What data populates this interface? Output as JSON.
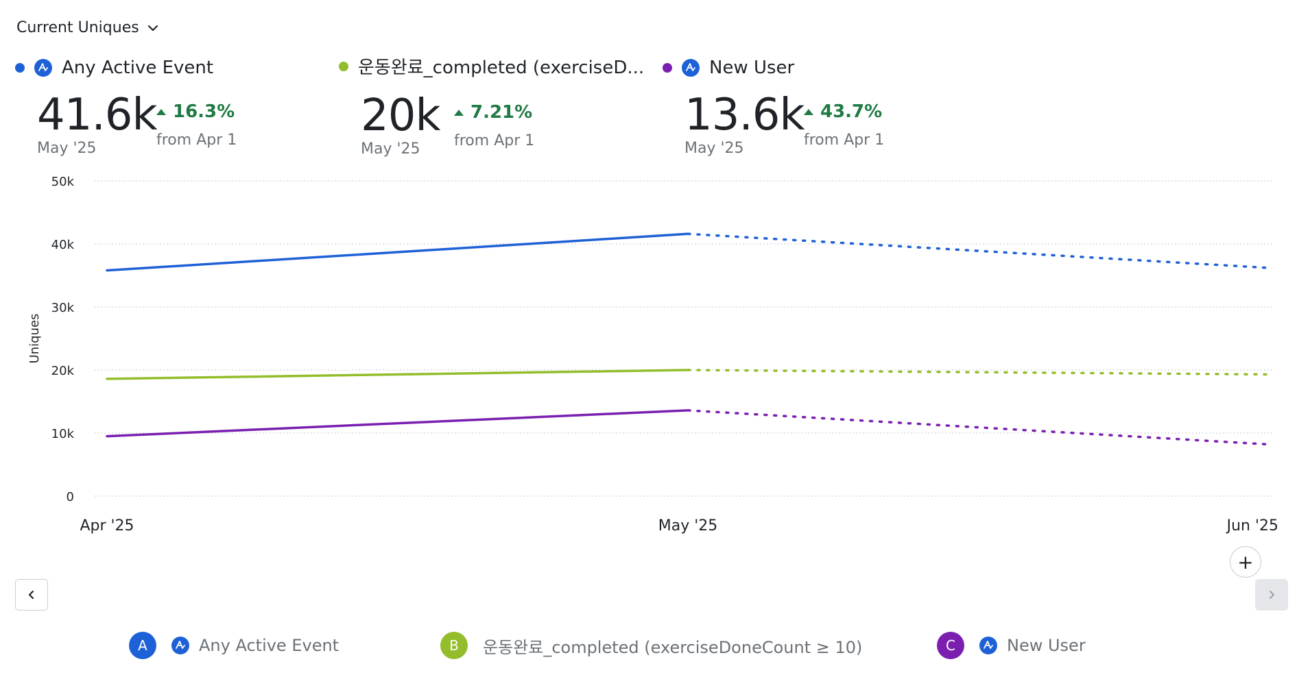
{
  "header": {
    "metric_label": "Current Uniques"
  },
  "stats": [
    {
      "name": "Any Active Event",
      "value": "41.6k",
      "period": "May '25",
      "delta": "16.3%",
      "from": "from Apr 1",
      "color": "#1e61d6",
      "icon": "amplitude-icon"
    },
    {
      "name": "운동완료_completed (exerciseD...",
      "value": "20k",
      "period": "May '25",
      "delta": "7.21%",
      "from": "from Apr 1",
      "color": "#93bd2b",
      "icon": null
    },
    {
      "name": "New User",
      "value": "13.6k",
      "period": "May '25",
      "delta": "43.7%",
      "from": "from Apr 1",
      "color": "#7a1fb0",
      "icon": "amplitude-icon"
    }
  ],
  "legend": [
    {
      "badge": "A",
      "label": "Any Active Event",
      "color": "#1e61d6",
      "icon": "amplitude-icon"
    },
    {
      "badge": "B",
      "label": "운동완료_completed (exerciseDoneCount ≥ 10)",
      "color": "#93bd2b",
      "icon": null
    },
    {
      "badge": "C",
      "label": "New User",
      "color": "#7a1fb0",
      "icon": "amplitude-icon"
    }
  ],
  "controls": {
    "add_label": "+"
  },
  "chart_data": {
    "type": "line",
    "categories": [
      "Apr '25",
      "May '25",
      "Jun '25"
    ],
    "ylabel": "Uniques",
    "yticks": [
      "0",
      "10k",
      "20k",
      "30k",
      "40k",
      "50k"
    ],
    "ylim": [
      0,
      50000
    ],
    "grid": true,
    "series": [
      {
        "name": "Any Active Event",
        "color": "#1e61d6",
        "values": [
          35800,
          41600,
          36200
        ],
        "projected_from_index": 1
      },
      {
        "name": "운동완료_completed (exerciseDoneCount ≥ 10)",
        "color": "#93bd2b",
        "values": [
          18600,
          20000,
          19300
        ],
        "projected_from_index": 1
      },
      {
        "name": "New User",
        "color": "#7a1fb0",
        "values": [
          9500,
          13600,
          8200
        ],
        "projected_from_index": 1
      }
    ]
  }
}
